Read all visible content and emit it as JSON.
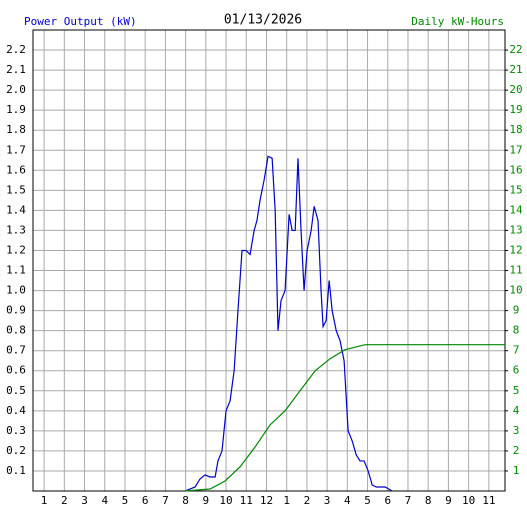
{
  "chart_data": {
    "type": "line",
    "title": "01/13/2026",
    "ylabel": "Power Output (kW)",
    "y2label": "Daily kW-Hours",
    "xlim": [
      0.45,
      23.8
    ],
    "xticks": [
      1,
      2,
      3,
      4,
      5,
      6,
      7,
      8,
      9,
      10,
      11,
      12,
      {
        "value": 13,
        "label": "1"
      },
      {
        "value": 14,
        "label": "2"
      },
      {
        "value": 15,
        "label": "3"
      },
      {
        "value": 16,
        "label": "4"
      },
      {
        "value": 17,
        "label": "5"
      },
      {
        "value": 18,
        "label": "6"
      },
      {
        "value": 19,
        "label": "7"
      },
      {
        "value": 20,
        "label": "8"
      },
      {
        "value": 21,
        "label": "9"
      },
      {
        "value": 22,
        "label": "10"
      },
      {
        "value": 23,
        "label": "11"
      }
    ],
    "ylim": [
      0,
      2.3
    ],
    "yticks": [
      0.1,
      0.2,
      0.3,
      0.4,
      0.5,
      0.6,
      0.7,
      0.8,
      0.9,
      {
        "value": 1.0,
        "label": "1.0"
      },
      1.1,
      1.2,
      1.3,
      1.4,
      1.5,
      1.6,
      1.7,
      1.8,
      1.9,
      {
        "value": 2.0,
        "label": "2.0"
      },
      2.1,
      2.2
    ],
    "y2lim": [
      0,
      23
    ],
    "y2ticks": [
      1,
      2,
      3,
      4,
      5,
      6,
      7,
      8,
      9,
      10,
      11,
      12,
      13,
      14,
      15,
      16,
      17,
      18,
      19,
      20,
      21,
      22
    ],
    "grid": true,
    "series": [
      {
        "name": "Power Output (kW)",
        "color": "#0000cc",
        "x": [
          7.97,
          8.47,
          8.71,
          8.96,
          9.21,
          9.46,
          9.6,
          9.8,
          10.0,
          10.2,
          10.4,
          10.59,
          10.79,
          10.99,
          11.19,
          11.39,
          11.53,
          11.68,
          11.88,
          12.08,
          12.28,
          12.43,
          12.57,
          12.72,
          12.92,
          13.12,
          13.27,
          13.42,
          13.56,
          13.71,
          13.86,
          14.01,
          14.21,
          14.36,
          14.55,
          14.7,
          14.8,
          14.95,
          15.1,
          15.25,
          15.45,
          15.64,
          15.84,
          16.04,
          16.24,
          16.44,
          16.63,
          16.83,
          17.03,
          17.23,
          17.43,
          17.87,
          18.22
        ],
        "values": [
          0,
          0.02,
          0.06,
          0.08,
          0.07,
          0.07,
          0.15,
          0.2,
          0.4,
          0.45,
          0.6,
          0.9,
          1.2,
          1.2,
          1.18,
          1.3,
          1.35,
          1.45,
          1.55,
          1.67,
          1.66,
          1.4,
          0.8,
          0.95,
          1.0,
          1.38,
          1.3,
          1.3,
          1.66,
          1.3,
          1.0,
          1.2,
          1.3,
          1.42,
          1.35,
          1.0,
          0.82,
          0.85,
          1.05,
          0.9,
          0.8,
          0.75,
          0.65,
          0.3,
          0.25,
          0.18,
          0.15,
          0.15,
          0.1,
          0.03,
          0.02,
          0.02,
          0
        ]
      },
      {
        "name": "Daily kW-Hours",
        "color": "#008800",
        "axis": "y2",
        "x": [
          7.97,
          9.21,
          9.95,
          10.69,
          11.44,
          12.18,
          12.92,
          13.66,
          14.41,
          15.15,
          15.89,
          16.88,
          23.8
        ],
        "values": [
          0,
          0.1,
          0.5,
          1.2,
          2.2,
          3.3,
          4.0,
          5.0,
          6.0,
          6.6,
          7.05,
          7.3,
          7.3
        ]
      }
    ]
  }
}
